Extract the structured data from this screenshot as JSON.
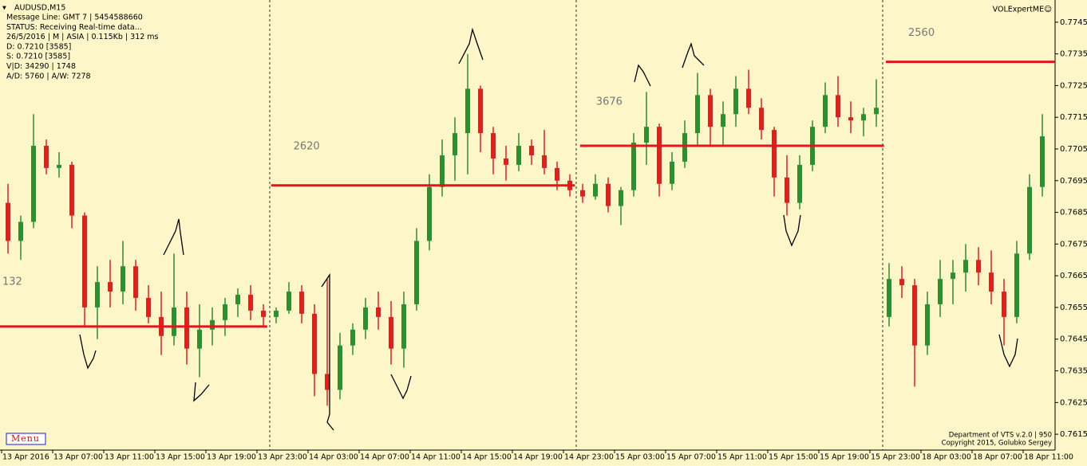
{
  "chart_data": {
    "type": "candlestick",
    "symbol": "AUDUSD,M15",
    "info_lines": [
      "Message Line: GMT 7 | 5454588660",
      "STATUS:  Receiving Real-time data...",
      "26/5/2016 | M | ASIA | 0.115Kb | 312 ms",
      "D: 0.7210  [3585]",
      "S: 0.7210  [3585]",
      "V|D: 34290 | 1748",
      "A/D: 5760 | A/W: 7278"
    ],
    "indicator": "VOLExpertME☺",
    "footer": [
      "Department of VTS  v.2.0 | 950",
      "Copyright 2015, Golubko Sergey"
    ],
    "menu": "Menu",
    "up_color": "#2f8f2f",
    "down_color": "#e0201c",
    "level_color": "#e8141b",
    "open": [
      0.7688,
      0.7676,
      0.7682,
      0.7706,
      0.7699,
      0.77,
      0.7684,
      0.7655,
      0.7663,
      0.766,
      0.7668,
      0.7658,
      0.7652,
      0.7646,
      0.7655,
      0.7642,
      0.7648,
      0.7651,
      0.7656,
      0.7659,
      0.7654,
      0.7652,
      0.7654,
      0.766,
      0.7653,
      0.7634,
      0.7629,
      0.7643,
      0.7648,
      0.7655,
      0.7652,
      0.7642,
      0.7656,
      0.7676,
      0.7693,
      0.7703,
      0.771,
      0.7724,
      0.771,
      0.7702,
      0.77,
      0.7706,
      0.7703,
      0.7699,
      0.7695,
      0.7692,
      0.769,
      0.7694,
      0.7687,
      0.7692,
      0.7707,
      0.7712,
      0.7694,
      0.7701,
      0.771,
      0.7722,
      0.7712,
      0.7716,
      0.7724,
      0.7718,
      0.7711,
      0.7696,
      0.7688,
      0.77,
      0.7712,
      0.7722,
      0.7715,
      0.7714,
      0.7716,
      0.7652,
      0.7664,
      0.7662,
      0.7643,
      0.7656,
      0.7664,
      0.7666,
      0.767,
      0.7666,
      0.766,
      0.7652,
      0.7672,
      0.7693
    ],
    "high": [
      0.7694,
      0.7684,
      0.7716,
      0.7708,
      0.7704,
      0.7701,
      0.7685,
      0.7668,
      0.767,
      0.7676,
      0.767,
      0.7662,
      0.766,
      0.7672,
      0.766,
      0.7656,
      0.7655,
      0.7658,
      0.7661,
      0.7662,
      0.7656,
      0.7655,
      0.7663,
      0.7662,
      0.7656,
      0.7664,
      0.7647,
      0.765,
      0.7658,
      0.766,
      0.7657,
      0.766,
      0.768,
      0.7697,
      0.7708,
      0.7715,
      0.7735,
      0.7725,
      0.7712,
      0.7706,
      0.771,
      0.7708,
      0.7711,
      0.7701,
      0.7697,
      0.7694,
      0.7697,
      0.7696,
      0.7693,
      0.771,
      0.7723,
      0.7713,
      0.7704,
      0.7714,
      0.7729,
      0.7724,
      0.772,
      0.7728,
      0.773,
      0.7721,
      0.7712,
      0.7703,
      0.7703,
      0.7714,
      0.7726,
      0.7728,
      0.772,
      0.7718,
      0.7727,
      0.7669,
      0.7668,
      0.7664,
      0.766,
      0.767,
      0.767,
      0.7675,
      0.7674,
      0.7673,
      0.7664,
      0.7676,
      0.7697,
      0.7716
    ],
    "low": [
      0.7672,
      0.767,
      0.768,
      0.7697,
      0.7696,
      0.768,
      0.7649,
      0.7645,
      0.7655,
      0.7656,
      0.7654,
      0.765,
      0.764,
      0.7643,
      0.7637,
      0.7633,
      0.7643,
      0.7646,
      0.7652,
      0.7651,
      0.7649,
      0.765,
      0.7653,
      0.765,
      0.7627,
      0.7624,
      0.7626,
      0.764,
      0.7645,
      0.7648,
      0.7637,
      0.7636,
      0.7654,
      0.7673,
      0.769,
      0.7695,
      0.7697,
      0.7704,
      0.7697,
      0.7695,
      0.7698,
      0.77,
      0.7697,
      0.7692,
      0.769,
      0.7688,
      0.7689,
      0.7685,
      0.7681,
      0.769,
      0.77,
      0.769,
      0.7692,
      0.7699,
      0.7706,
      0.7706,
      0.7706,
      0.7712,
      0.7716,
      0.7708,
      0.769,
      0.7684,
      0.7686,
      0.7698,
      0.771,
      0.7712,
      0.771,
      0.7709,
      0.7712,
      0.7649,
      0.7658,
      0.763,
      0.764,
      0.7652,
      0.7656,
      0.766,
      0.7662,
      0.7656,
      0.7643,
      0.765,
      0.767,
      0.769
    ],
    "close": [
      0.7676,
      0.7682,
      0.7706,
      0.7699,
      0.77,
      0.7684,
      0.7655,
      0.7663,
      0.766,
      0.7668,
      0.7658,
      0.7652,
      0.7646,
      0.7655,
      0.7642,
      0.7648,
      0.7651,
      0.7656,
      0.7659,
      0.7654,
      0.7652,
      0.7654,
      0.766,
      0.7653,
      0.7634,
      0.7629,
      0.7643,
      0.7648,
      0.7655,
      0.7652,
      0.7642,
      0.7656,
      0.7676,
      0.7693,
      0.7703,
      0.771,
      0.7724,
      0.771,
      0.7702,
      0.77,
      0.7706,
      0.7703,
      0.7699,
      0.7695,
      0.7692,
      0.769,
      0.7694,
      0.7687,
      0.7692,
      0.7707,
      0.7712,
      0.7694,
      0.7701,
      0.771,
      0.7722,
      0.7712,
      0.7716,
      0.7724,
      0.7718,
      0.7711,
      0.7696,
      0.7688,
      0.77,
      0.7712,
      0.7722,
      0.7715,
      0.7714,
      0.7716,
      0.7718,
      0.7664,
      0.7662,
      0.7643,
      0.7656,
      0.7664,
      0.7666,
      0.767,
      0.7666,
      0.766,
      0.7652,
      0.7672,
      0.7693,
      0.7709
    ],
    "levels": [
      {
        "value": 0.7649,
        "from": -0.125,
        "to": 20.8,
        "label": "132"
      },
      {
        "value": 0.76935,
        "from": 21.1,
        "to": 44.9,
        "label": "2620"
      },
      {
        "value": 0.7706,
        "from": 45.3,
        "to": 69.1,
        "label": "3676"
      },
      {
        "value": 0.77325,
        "from": 69.25,
        "to": 82.5,
        "label": "2560"
      }
    ],
    "separators": [
      21,
      45,
      69
    ],
    "xlim": [
      -0.125,
      82.5
    ],
    "ylim": [
      0.761,
      0.7752
    ],
    "yticks": [
      0.7745,
      0.7735,
      0.7725,
      0.7715,
      0.7705,
      0.7695,
      0.7685,
      0.7675,
      0.7665,
      0.7655,
      0.7645,
      0.7635,
      0.7625,
      0.7615
    ],
    "xticks": [
      {
        "value": 0,
        "label": "13 Apr 2016"
      },
      {
        "value": 4,
        "label": "13 Apr 07:00"
      },
      {
        "value": 8,
        "label": "13 Apr 11:00"
      },
      {
        "value": 12,
        "label": "13 Apr 15:00"
      },
      {
        "value": 16,
        "label": "13 Apr 19:00"
      },
      {
        "value": 20,
        "label": "13 Apr 23:00"
      },
      {
        "value": 24,
        "label": "14 Apr 03:00"
      },
      {
        "value": 28,
        "label": "14 Apr 07:00"
      },
      {
        "value": 32,
        "label": "14 Apr 11:00"
      },
      {
        "value": 36,
        "label": "14 Apr 15:00"
      },
      {
        "value": 40,
        "label": "14 Apr 19:00"
      },
      {
        "value": 44,
        "label": "14 Apr 23:00"
      },
      {
        "value": 48,
        "label": "15 Apr 03:00"
      },
      {
        "value": 52,
        "label": "15 Apr 07:00"
      },
      {
        "value": 56,
        "label": "15 Apr 11:00"
      },
      {
        "value": 60,
        "label": "15 Apr 15:00"
      },
      {
        "value": 64,
        "label": "15 Apr 19:00"
      },
      {
        "value": 68,
        "label": "15 Apr 23:00"
      },
      {
        "value": 72,
        "label": "18 Apr 03:00"
      },
      {
        "value": 76,
        "label": "18 Apr 07:00"
      },
      {
        "value": 80,
        "label": "18 Apr 11:00"
      }
    ]
  }
}
